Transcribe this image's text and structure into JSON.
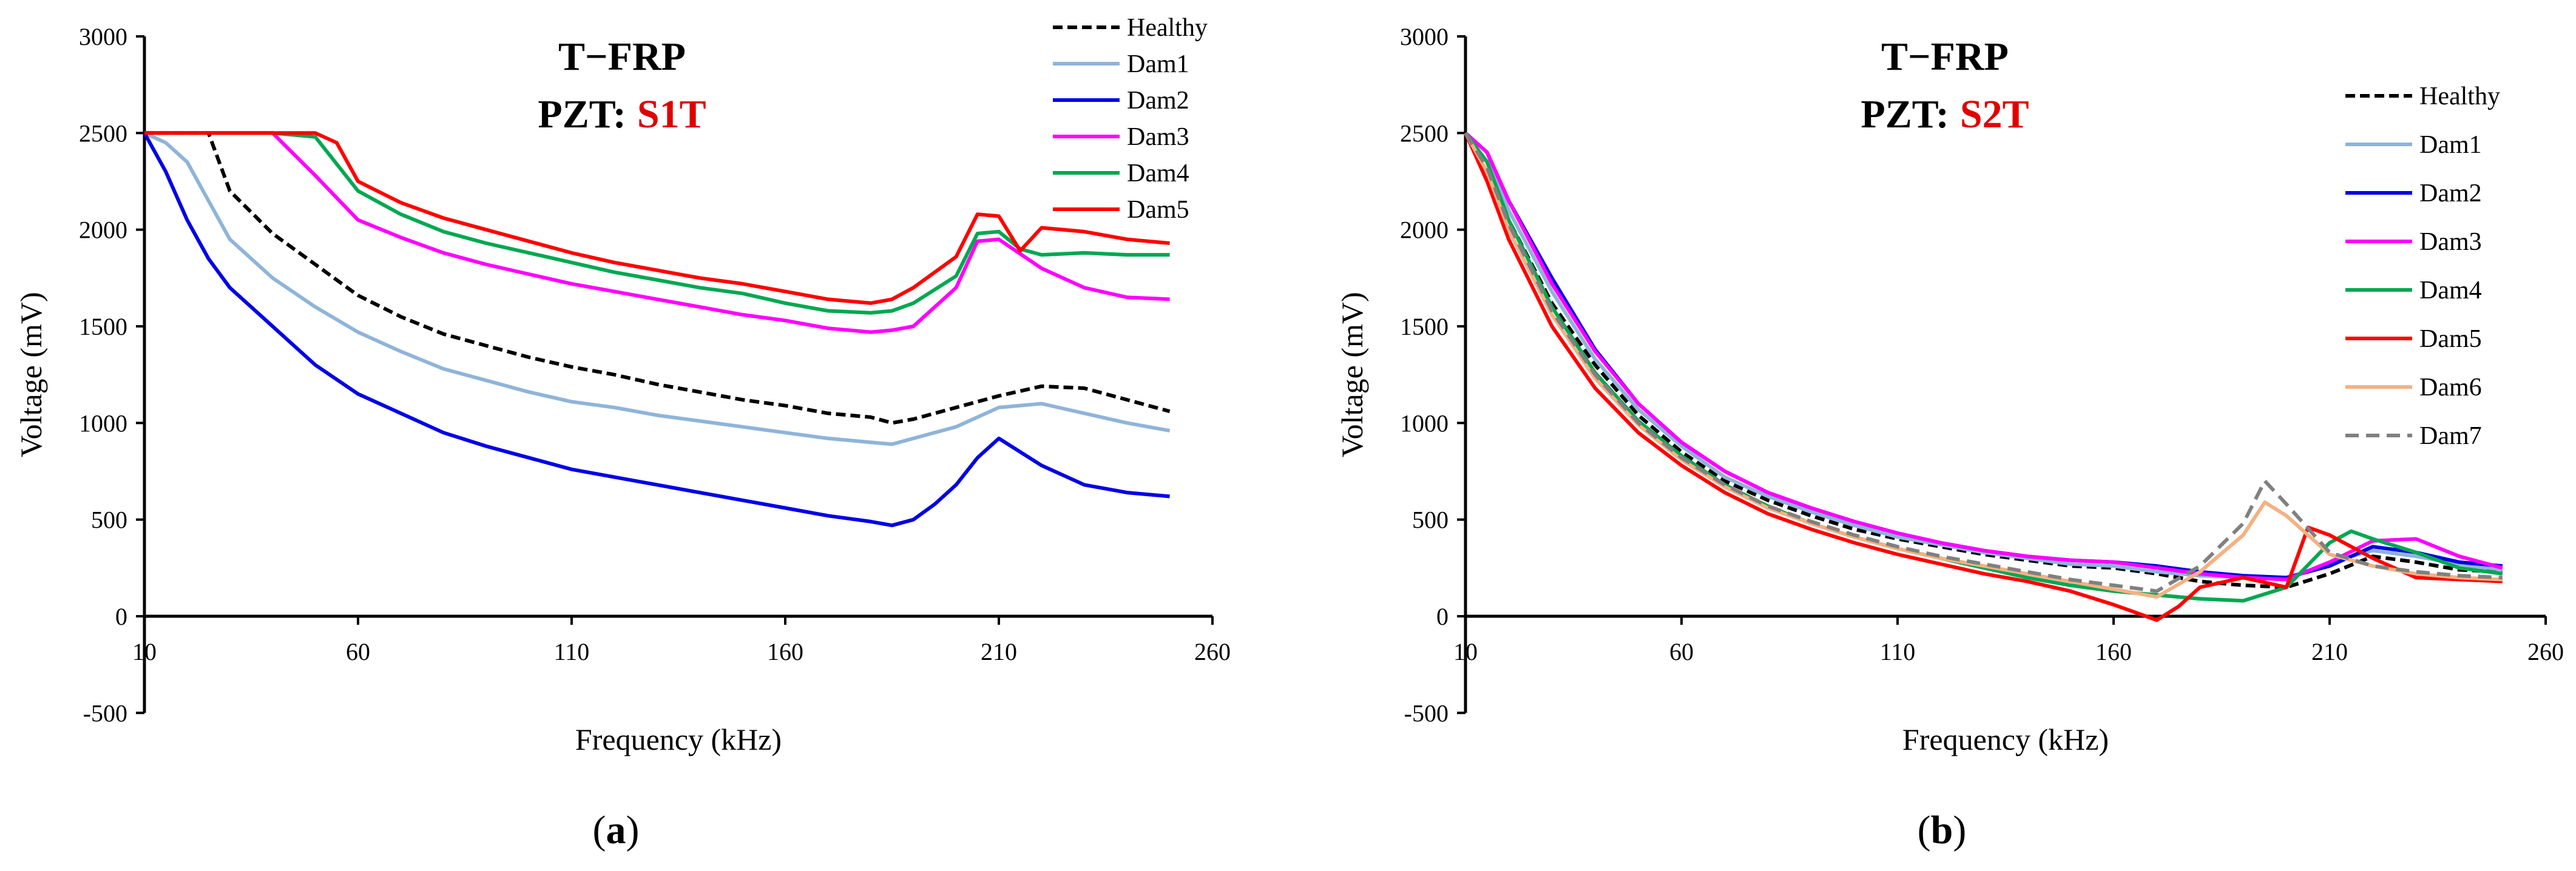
{
  "colors": {
    "healthy": "#000000",
    "dam1": "#8fb4d9",
    "dam2": "#0000e6",
    "dam3": "#ff00ff",
    "dam4": "#00a850",
    "dam5": "#ff0000",
    "dam6": "#f4b183",
    "dam7": "#808080",
    "highlight": "#e00000"
  },
  "chart_data": [
    {
      "type": "line",
      "panel_label": "a",
      "title": "T−FRP",
      "pzt_prefix": "PZT:",
      "pzt_sensor": "S1T",
      "xlabel": "Frequency (kHz)",
      "ylabel": "Voltage (mV)",
      "xlim": [
        10,
        260
      ],
      "ylim": [
        -500,
        3000
      ],
      "xticks": [
        10,
        60,
        110,
        160,
        210,
        260
      ],
      "yticks": [
        -500,
        0,
        500,
        1000,
        1500,
        2000,
        2500,
        3000
      ],
      "legend_position": "top-right",
      "series": [
        {
          "name": "Healthy",
          "color": "#000000",
          "dash": true,
          "x": [
            10,
            20,
            25,
            30,
            40,
            50,
            60,
            70,
            80,
            90,
            100,
            110,
            120,
            130,
            140,
            150,
            160,
            170,
            180,
            185,
            190,
            200,
            210,
            220,
            230,
            240,
            250
          ],
          "y": [
            2500,
            2500,
            2500,
            2200,
            1980,
            1820,
            1660,
            1550,
            1460,
            1400,
            1340,
            1290,
            1250,
            1200,
            1160,
            1120,
            1090,
            1050,
            1030,
            1000,
            1020,
            1080,
            1140,
            1190,
            1180,
            1120,
            1060
          ]
        },
        {
          "name": "Dam1",
          "color": "#8fb4d9",
          "dash": false,
          "x": [
            10,
            15,
            20,
            25,
            30,
            40,
            50,
            60,
            70,
            80,
            90,
            100,
            110,
            120,
            130,
            140,
            150,
            160,
            170,
            180,
            185,
            190,
            200,
            210,
            220,
            230,
            240,
            250
          ],
          "y": [
            2500,
            2450,
            2350,
            2150,
            1950,
            1750,
            1600,
            1470,
            1370,
            1280,
            1220,
            1160,
            1110,
            1080,
            1040,
            1010,
            980,
            950,
            920,
            900,
            890,
            920,
            980,
            1080,
            1100,
            1050,
            1000,
            960
          ]
        },
        {
          "name": "Dam2",
          "color": "#0000e6",
          "dash": false,
          "x": [
            10,
            15,
            20,
            25,
            30,
            40,
            50,
            60,
            70,
            80,
            90,
            100,
            110,
            120,
            130,
            140,
            150,
            160,
            170,
            180,
            185,
            190,
            195,
            200,
            205,
            210,
            220,
            230,
            240,
            250
          ],
          "y": [
            2500,
            2300,
            2050,
            1850,
            1700,
            1500,
            1300,
            1150,
            1050,
            950,
            880,
            820,
            760,
            720,
            680,
            640,
            600,
            560,
            520,
            490,
            470,
            500,
            580,
            680,
            820,
            920,
            780,
            680,
            640,
            620
          ]
        },
        {
          "name": "Dam3",
          "color": "#ff00ff",
          "dash": false,
          "x": [
            10,
            20,
            30,
            40,
            50,
            60,
            70,
            80,
            90,
            100,
            110,
            120,
            130,
            140,
            150,
            160,
            170,
            180,
            185,
            190,
            200,
            205,
            210,
            220,
            230,
            240,
            250
          ],
          "y": [
            2500,
            2500,
            2500,
            2500,
            2280,
            2050,
            1960,
            1880,
            1820,
            1770,
            1720,
            1680,
            1640,
            1600,
            1560,
            1530,
            1490,
            1470,
            1480,
            1500,
            1700,
            1940,
            1950,
            1800,
            1700,
            1650,
            1640
          ]
        },
        {
          "name": "Dam4",
          "color": "#00a850",
          "dash": false,
          "x": [
            10,
            20,
            30,
            40,
            50,
            60,
            70,
            80,
            90,
            100,
            110,
            120,
            130,
            140,
            150,
            160,
            170,
            180,
            185,
            190,
            200,
            205,
            210,
            215,
            220,
            230,
            240,
            250
          ],
          "y": [
            2500,
            2500,
            2500,
            2500,
            2480,
            2200,
            2080,
            1990,
            1930,
            1880,
            1830,
            1780,
            1740,
            1700,
            1670,
            1620,
            1580,
            1570,
            1580,
            1620,
            1760,
            1980,
            1990,
            1900,
            1870,
            1880,
            1870,
            1870
          ]
        },
        {
          "name": "Dam5",
          "color": "#ff0000",
          "dash": false,
          "x": [
            10,
            20,
            30,
            40,
            50,
            55,
            60,
            70,
            80,
            90,
            100,
            110,
            120,
            130,
            140,
            150,
            160,
            170,
            180,
            185,
            190,
            200,
            205,
            210,
            215,
            220,
            230,
            240,
            250
          ],
          "y": [
            2500,
            2500,
            2500,
            2500,
            2500,
            2450,
            2250,
            2140,
            2060,
            2000,
            1940,
            1880,
            1830,
            1790,
            1750,
            1720,
            1680,
            1640,
            1620,
            1640,
            1700,
            1860,
            2080,
            2070,
            1890,
            2010,
            1990,
            1950,
            1930
          ]
        }
      ]
    },
    {
      "type": "line",
      "panel_label": "b",
      "title": "T−FRP",
      "pzt_prefix": "PZT:",
      "pzt_sensor": "S2T",
      "xlabel": "Frequency (kHz)",
      "ylabel": "Voltage (mV)",
      "xlim": [
        10,
        260
      ],
      "ylim": [
        -500,
        3000
      ],
      "xticks": [
        10,
        60,
        110,
        160,
        210,
        260
      ],
      "yticks": [
        -500,
        0,
        500,
        1000,
        1500,
        2000,
        2500,
        3000
      ],
      "legend_position": "top-right",
      "series": [
        {
          "name": "Healthy",
          "color": "#000000",
          "dash": true,
          "x": [
            10,
            15,
            20,
            30,
            40,
            50,
            60,
            70,
            80,
            90,
            100,
            110,
            120,
            130,
            140,
            150,
            160,
            170,
            180,
            190,
            200,
            210,
            220,
            230,
            240,
            250
          ],
          "y": [
            2500,
            2300,
            2050,
            1620,
            1300,
            1040,
            850,
            700,
            600,
            520,
            450,
            400,
            360,
            320,
            290,
            260,
            250,
            220,
            180,
            160,
            150,
            220,
            310,
            280,
            240,
            230
          ]
        },
        {
          "name": "Dam1",
          "color": "#8fb4d9",
          "dash": false,
          "x": [
            10,
            15,
            20,
            30,
            40,
            50,
            60,
            70,
            80,
            90,
            100,
            110,
            120,
            130,
            140,
            150,
            160,
            170,
            180,
            190,
            200,
            210,
            220,
            230,
            240,
            250
          ],
          "y": [
            2500,
            2400,
            2100,
            1680,
            1330,
            1070,
            880,
            720,
            620,
            540,
            470,
            410,
            370,
            330,
            300,
            270,
            260,
            230,
            210,
            200,
            190,
            280,
            340,
            310,
            270,
            240
          ]
        },
        {
          "name": "Dam2",
          "color": "#0000e6",
          "dash": false,
          "x": [
            10,
            15,
            20,
            30,
            40,
            50,
            60,
            70,
            80,
            90,
            100,
            110,
            120,
            130,
            140,
            150,
            160,
            170,
            180,
            190,
            200,
            210,
            220,
            230,
            240,
            250
          ],
          "y": [
            2500,
            2400,
            2150,
            1750,
            1380,
            1100,
            900,
            750,
            640,
            560,
            490,
            430,
            380,
            340,
            310,
            290,
            280,
            260,
            230,
            210,
            200,
            260,
            360,
            330,
            280,
            260
          ]
        },
        {
          "name": "Dam3",
          "color": "#ff00ff",
          "dash": false,
          "x": [
            10,
            15,
            20,
            30,
            40,
            50,
            60,
            70,
            80,
            90,
            100,
            110,
            120,
            130,
            140,
            150,
            160,
            170,
            180,
            190,
            200,
            210,
            220,
            230,
            240,
            250
          ],
          "y": [
            2500,
            2400,
            2150,
            1720,
            1370,
            1100,
            900,
            750,
            640,
            560,
            490,
            430,
            380,
            340,
            310,
            290,
            280,
            250,
            220,
            200,
            190,
            280,
            390,
            400,
            310,
            250
          ]
        },
        {
          "name": "Dam4",
          "color": "#00a850",
          "dash": false,
          "x": [
            10,
            15,
            20,
            30,
            40,
            50,
            60,
            70,
            80,
            90,
            100,
            110,
            120,
            130,
            140,
            150,
            160,
            170,
            180,
            190,
            200,
            210,
            215,
            220,
            230,
            240,
            250
          ],
          "y": [
            2500,
            2350,
            2050,
            1600,
            1260,
            1010,
            830,
            680,
            570,
            480,
            410,
            350,
            300,
            250,
            200,
            160,
            130,
            110,
            90,
            80,
            150,
            380,
            440,
            400,
            330,
            250,
            220
          ]
        },
        {
          "name": "Dam5",
          "color": "#ff0000",
          "dash": false,
          "x": [
            10,
            15,
            20,
            30,
            40,
            50,
            60,
            70,
            80,
            90,
            100,
            110,
            120,
            130,
            140,
            150,
            160,
            165,
            170,
            175,
            180,
            190,
            200,
            205,
            210,
            220,
            230,
            240,
            250
          ],
          "y": [
            2500,
            2250,
            1950,
            1500,
            1180,
            950,
            780,
            640,
            530,
            450,
            380,
            320,
            270,
            220,
            180,
            130,
            60,
            20,
            -20,
            50,
            150,
            200,
            150,
            460,
            420,
            300,
            200,
            190,
            180
          ]
        },
        {
          "name": "Dam6",
          "color": "#f4b183",
          "dash": false,
          "x": [
            10,
            15,
            20,
            30,
            40,
            50,
            60,
            70,
            80,
            90,
            100,
            110,
            120,
            130,
            140,
            150,
            160,
            170,
            180,
            190,
            195,
            200,
            210,
            220,
            230,
            240,
            250
          ],
          "y": [
            2500,
            2300,
            2000,
            1560,
            1230,
            990,
            810,
            670,
            560,
            480,
            410,
            350,
            300,
            260,
            220,
            180,
            140,
            100,
            230,
            420,
            590,
            520,
            320,
            260,
            220,
            200,
            190
          ]
        },
        {
          "name": "Dam7",
          "color": "#808080",
          "dash": true,
          "x": [
            10,
            15,
            20,
            30,
            40,
            50,
            60,
            70,
            80,
            90,
            100,
            110,
            120,
            130,
            140,
            150,
            160,
            170,
            180,
            190,
            195,
            200,
            210,
            220,
            230,
            240,
            250
          ],
          "y": [
            2500,
            2320,
            2030,
            1580,
            1250,
            1000,
            820,
            680,
            570,
            490,
            420,
            360,
            310,
            270,
            230,
            190,
            160,
            130,
            260,
            480,
            700,
            580,
            330,
            260,
            230,
            210,
            200
          ]
        }
      ]
    }
  ]
}
